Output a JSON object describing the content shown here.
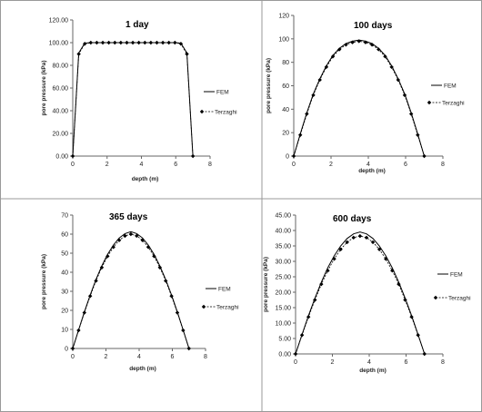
{
  "chart_data": [
    {
      "type": "line",
      "title": "1 day",
      "xlabel": "depth (m)",
      "ylabel": "pore pressure (kPa)",
      "xlim": [
        0,
        8
      ],
      "ylim": [
        0,
        120
      ],
      "xticks": [
        "0",
        "2",
        "4",
        "6",
        "8"
      ],
      "yticks": [
        "0.00",
        "20.00",
        "40.00",
        "60.00",
        "80.00",
        "100.00",
        "120.00"
      ],
      "legend_position": "right",
      "grid": false,
      "series": [
        {
          "name": "FEM",
          "style": "line",
          "x": [
            0,
            0.35,
            0.7,
            1.0,
            6.0,
            6.3,
            6.65,
            7.0
          ],
          "y": [
            0,
            91,
            99.5,
            100,
            100,
            99.5,
            91,
            0
          ]
        },
        {
          "name": "Terzaghi",
          "style": "dashed-diamond",
          "x": [
            0,
            0.35,
            0.7,
            1.05,
            1.4,
            1.75,
            2.1,
            2.45,
            2.8,
            3.15,
            3.5,
            3.85,
            4.2,
            4.55,
            4.9,
            5.25,
            5.6,
            5.95,
            6.3,
            6.65,
            7.0
          ],
          "y": [
            0,
            90,
            99,
            100,
            100,
            100,
            100,
            100,
            100,
            100,
            100,
            100,
            100,
            100,
            100,
            100,
            100,
            100,
            99,
            90,
            0
          ]
        }
      ]
    },
    {
      "type": "line",
      "title": "100 days",
      "xlabel": "depth (m)",
      "ylabel": "pore pressure (kPa)",
      "xlim": [
        0,
        8
      ],
      "ylim": [
        0,
        120
      ],
      "xticks": [
        "0",
        "2",
        "4",
        "6",
        "8"
      ],
      "yticks": [
        "0",
        "20",
        "40",
        "60",
        "80",
        "100",
        "120"
      ],
      "legend_position": "right",
      "grid": false,
      "series": [
        {
          "name": "FEM",
          "style": "line",
          "x": [
            0,
            0.35,
            0.7,
            1.05,
            1.4,
            1.75,
            2.1,
            2.45,
            2.8,
            3.15,
            3.5,
            3.85,
            4.2,
            4.55,
            4.9,
            5.25,
            5.6,
            5.95,
            6.3,
            6.65,
            7.0
          ],
          "y": [
            0,
            19,
            37,
            53,
            66,
            77,
            86,
            92,
            96,
            98,
            99,
            98,
            96,
            92,
            86,
            77,
            66,
            53,
            37,
            19,
            0
          ]
        },
        {
          "name": "Terzaghi",
          "style": "dashed-diamond",
          "x": [
            0,
            0.35,
            0.7,
            1.05,
            1.4,
            1.75,
            2.1,
            2.45,
            2.8,
            3.15,
            3.5,
            3.85,
            4.2,
            4.55,
            4.9,
            5.25,
            5.6,
            5.95,
            6.3,
            6.65,
            7.0
          ],
          "y": [
            0,
            18,
            36,
            52,
            65,
            76,
            85,
            91,
            95,
            97,
            98,
            97,
            95,
            91,
            85,
            76,
            65,
            52,
            36,
            18,
            0
          ]
        }
      ]
    },
    {
      "type": "line",
      "title": "365 days",
      "xlabel": "depth (m)",
      "ylabel": "pore pressure (kPa)",
      "xlim": [
        0,
        8
      ],
      "ylim": [
        0,
        70
      ],
      "xticks": [
        "0",
        "2",
        "4",
        "6",
        "8"
      ],
      "yticks": [
        "0",
        "10",
        "20",
        "30",
        "40",
        "50",
        "60",
        "70"
      ],
      "legend_position": "right",
      "grid": false,
      "series": [
        {
          "name": "FEM",
          "style": "line",
          "x": [
            0,
            0.35,
            0.7,
            1.05,
            1.4,
            1.75,
            2.1,
            2.45,
            2.8,
            3.15,
            3.5,
            3.85,
            4.2,
            4.55,
            4.9,
            5.25,
            5.6,
            5.95,
            6.3,
            6.65,
            7.0
          ],
          "y": [
            0,
            9.7,
            19.2,
            28.1,
            36.2,
            43.3,
            49.4,
            54.3,
            58.0,
            60.3,
            61.3,
            60.3,
            58.0,
            54.3,
            49.4,
            43.3,
            36.2,
            28.1,
            19.2,
            9.7,
            0
          ]
        },
        {
          "name": "Terzaghi",
          "style": "dashed-diamond",
          "x": [
            0,
            0.35,
            0.7,
            1.05,
            1.4,
            1.75,
            2.1,
            2.45,
            2.8,
            3.15,
            3.5,
            3.85,
            4.2,
            4.55,
            4.9,
            5.25,
            5.6,
            5.95,
            6.3,
            6.65,
            7.0
          ],
          "y": [
            0,
            9.5,
            18.8,
            27.5,
            35.5,
            42.5,
            48.4,
            53.2,
            56.8,
            59.1,
            60.0,
            59.1,
            56.8,
            53.2,
            48.4,
            42.5,
            35.5,
            27.5,
            18.8,
            9.5,
            0
          ]
        }
      ]
    },
    {
      "type": "line",
      "title": "600 days",
      "xlabel": "depth (m)",
      "ylabel": "pore pressure (kPa)",
      "xlim": [
        0,
        8
      ],
      "ylim": [
        0,
        45
      ],
      "xticks": [
        "0",
        "2",
        "4",
        "6",
        "8"
      ],
      "yticks": [
        "0.00",
        "5.00",
        "10.00",
        "15.00",
        "20.00",
        "25.00",
        "30.00",
        "35.00",
        "40.00",
        "45.00"
      ],
      "legend_position": "right",
      "grid": false,
      "series": [
        {
          "name": "FEM",
          "style": "line",
          "x": [
            0,
            0.35,
            0.7,
            1.05,
            1.4,
            1.75,
            2.1,
            2.45,
            2.8,
            3.15,
            3.5,
            3.85,
            4.2,
            4.55,
            4.9,
            5.25,
            5.6,
            5.95,
            6.3,
            6.65,
            7.0
          ],
          "y": [
            0,
            6.3,
            12.4,
            18.1,
            23.3,
            27.9,
            31.8,
            35.0,
            37.4,
            38.9,
            39.5,
            38.9,
            37.4,
            35.0,
            31.8,
            27.9,
            23.3,
            18.1,
            12.4,
            6.3,
            0
          ]
        },
        {
          "name": "Terzaghi",
          "style": "dashed-diamond",
          "x": [
            0,
            0.35,
            0.7,
            1.05,
            1.4,
            1.75,
            2.1,
            2.45,
            2.8,
            3.15,
            3.5,
            3.85,
            4.2,
            4.55,
            4.9,
            5.25,
            5.6,
            5.95,
            6.3,
            6.65,
            7.0
          ],
          "y": [
            0,
            6.1,
            12.0,
            17.5,
            22.6,
            27.0,
            30.8,
            33.9,
            36.2,
            37.7,
            38.2,
            37.7,
            36.2,
            33.9,
            30.8,
            27.0,
            22.6,
            17.5,
            12.0,
            6.1,
            0
          ]
        }
      ]
    }
  ],
  "colors": {
    "line": "#000000",
    "panel_border": "#999999",
    "background": "#ffffff"
  }
}
